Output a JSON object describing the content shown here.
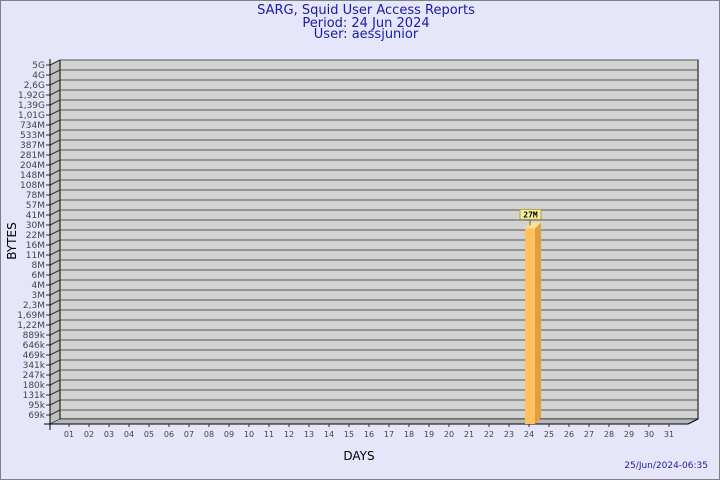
{
  "chart_data": {
    "type": "bar",
    "title": "SARG, Squid User Access Reports",
    "subtitle": [
      "Period: 24 Jun 2024",
      "User: aessjunior"
    ],
    "xlabel": "DAYS",
    "ylabel": "BYTES",
    "y_scale": "log",
    "y_tick_labels": [
      "5G",
      "4G",
      "2,6G",
      "1,92G",
      "1,39G",
      "1,01G",
      "734M",
      "533M",
      "387M",
      "281M",
      "204M",
      "148M",
      "108M",
      "78M",
      "57M",
      "41M",
      "30M",
      "22M",
      "16M",
      "11M",
      "8M",
      "6M",
      "4M",
      "3M",
      "2,3M",
      "1,69M",
      "1,22M",
      "889k",
      "646k",
      "469k",
      "341k",
      "247k",
      "180k",
      "131k",
      "95k",
      "69k"
    ],
    "categories": [
      "01",
      "02",
      "03",
      "04",
      "05",
      "06",
      "07",
      "08",
      "09",
      "10",
      "11",
      "12",
      "13",
      "14",
      "15",
      "16",
      "17",
      "18",
      "19",
      "20",
      "21",
      "22",
      "23",
      "24",
      "25",
      "26",
      "27",
      "28",
      "29",
      "30",
      "31"
    ],
    "series": [
      {
        "values": [
          null,
          null,
          null,
          null,
          null,
          null,
          null,
          null,
          null,
          null,
          null,
          null,
          null,
          null,
          null,
          null,
          null,
          null,
          null,
          null,
          null,
          null,
          null,
          27000000,
          null,
          null,
          null,
          null,
          null,
          null,
          null
        ]
      }
    ],
    "data_labels": {
      "24": "27M"
    },
    "grid": true,
    "colors": {
      "bar_front": "#ffc060",
      "bar_side": "#e0a040",
      "bar_top": "#ffe090",
      "plot": "#d3d3d3",
      "background": "#e6e6fa",
      "title": "#1a1aa6"
    }
  },
  "footer": {
    "timestamp": "25/Jun/2024-06:35"
  }
}
